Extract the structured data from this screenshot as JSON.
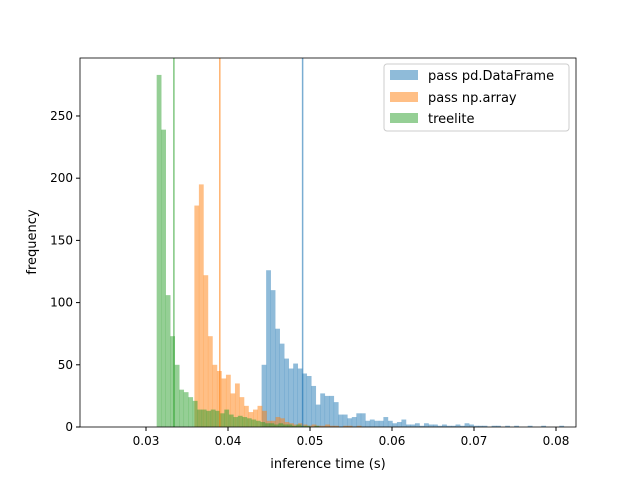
{
  "chart_data": {
    "type": "histogram",
    "xlabel": "inference time (s)",
    "ylabel": "frequency",
    "xlim": [
      0.02195,
      0.08244
    ],
    "ylim": [
      0,
      296.6
    ],
    "xticks": [
      "0.03",
      "0.04",
      "0.05",
      "0.06",
      "0.07",
      "0.08"
    ],
    "xtick_values": [
      0.03,
      0.04,
      0.05,
      0.06,
      0.07,
      0.08
    ],
    "yticks": [
      "0",
      "50",
      "100",
      "150",
      "200",
      "250"
    ],
    "ytick_values": [
      0,
      50,
      100,
      150,
      200,
      250
    ],
    "bin_width": 0.00055,
    "grid": false,
    "legend_position": "top-right",
    "series": [
      {
        "name": "pass pd.DataFrame",
        "color": "#1f77b4",
        "alpha": 0.5,
        "mean_line": 0.0491,
        "bin_start": 0.0441,
        "values": [
          50,
          126,
          110,
          79,
          67,
          55,
          47,
          51,
          47,
          43,
          41,
          33,
          18,
          27,
          25,
          25,
          20,
          10,
          10,
          7,
          8,
          11,
          11,
          5,
          6,
          5,
          5,
          8,
          5,
          3,
          4,
          6,
          2,
          2,
          3,
          1,
          3,
          2,
          2,
          1,
          2,
          1,
          1,
          2,
          1,
          3,
          2,
          1,
          1,
          1,
          0,
          1,
          1,
          0,
          1,
          0,
          1,
          0,
          0,
          1,
          0,
          0,
          1,
          0,
          0,
          0,
          1
        ]
      },
      {
        "name": "pass np.array",
        "color": "#ff7f0e",
        "alpha": 0.5,
        "mean_line": 0.039,
        "bin_start": 0.0359,
        "values": [
          178,
          195,
          122,
          73,
          50,
          45,
          39,
          42,
          27,
          35,
          24,
          17,
          12,
          14,
          17,
          13,
          5,
          5,
          8,
          7,
          4,
          3,
          2,
          3,
          2,
          1,
          2,
          1,
          1,
          2,
          1,
          1,
          0,
          1,
          1,
          0,
          1
        ]
      },
      {
        "name": "treelite",
        "color": "#2ca02c",
        "alpha": 0.5,
        "mean_line": 0.0334,
        "bin_start": 0.0313,
        "values": [
          283,
          239,
          106,
          73,
          50,
          30,
          28,
          24,
          21,
          14,
          14,
          13,
          14,
          13,
          11,
          14,
          10,
          8,
          9,
          8,
          7,
          6,
          5,
          4,
          3,
          3,
          2,
          3,
          2,
          2,
          1,
          2,
          1,
          1,
          0,
          1
        ]
      }
    ]
  }
}
